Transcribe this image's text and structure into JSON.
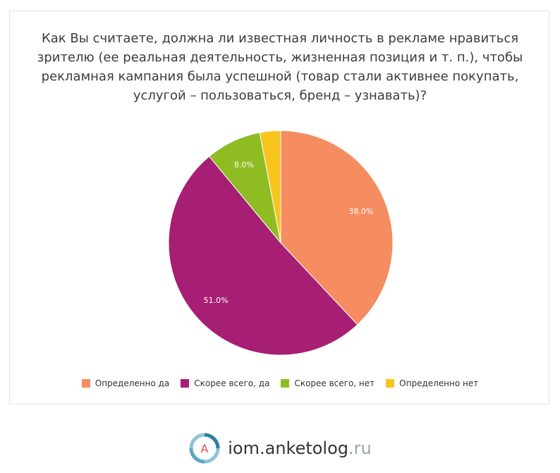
{
  "title_lines": [
    "Как Вы считаете, должна ли известная личность в рекламе нравиться",
    "зрителю (ее реальная деятельность, жизненная позиция и т. п.), чтобы",
    "рекламная кампания была успешной (товар стали активнее покупать,",
    "услугой – пользоваться, бренд – узнавать)?"
  ],
  "chart_data": {
    "type": "pie",
    "title": "Как Вы считаете, должна ли известная личность в рекламе нравиться зрителю (ее реальная деятельность, жизненная позиция и т. п.), чтобы рекламная кампания была успешной (товар стали активнее покупать, услугой – пользоваться, бренд – узнавать)?",
    "categories": [
      "Определенно да",
      "Скорее всего, да",
      "Скорее всего, нет",
      "Определенно нет"
    ],
    "values": [
      38.0,
      51.0,
      8.0,
      3.0
    ],
    "data_labels": [
      "38.0%",
      "51.0%",
      "8.0%",
      ""
    ],
    "colors": [
      "#f58d60",
      "#a71f74",
      "#8fbc23",
      "#f7c51e"
    ],
    "legend_position": "bottom"
  },
  "footer": {
    "logo_letter": "A",
    "brand": "iom.anketolog",
    "tld": ".ru"
  }
}
